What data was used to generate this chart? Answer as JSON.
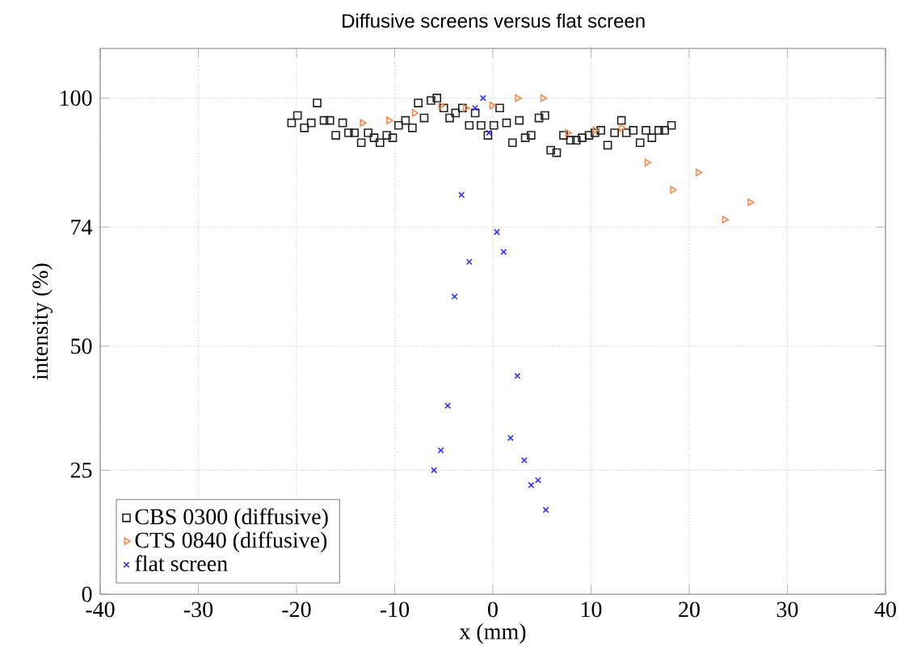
{
  "chart_data": {
    "type": "scatter",
    "title": "Diffusive screens versus flat screen",
    "xlabel": "x (mm)",
    "ylabel": "intensity (%)",
    "xlim": [
      -40,
      40
    ],
    "ylim": [
      0,
      110
    ],
    "xticks": [
      -40,
      -30,
      -20,
      -10,
      0,
      10,
      20,
      30,
      40
    ],
    "yticks": [
      0,
      25,
      50,
      74,
      100
    ],
    "grid": true,
    "legend": "bottom left",
    "series": [
      {
        "name": "CBS 0300 (diffusive)",
        "color": "#222222",
        "marker": "square",
        "x": [
          -20.5,
          -19.9,
          -19.2,
          -18.5,
          -17.9,
          -17.2,
          -16.6,
          -16.0,
          -15.3,
          -14.7,
          -14.1,
          -13.4,
          -12.7,
          -12.1,
          -11.5,
          -10.8,
          -10.2,
          -9.6,
          -8.9,
          -8.2,
          -7.6,
          -7.0,
          -6.3,
          -5.7,
          -5.0,
          -4.4,
          -3.8,
          -3.1,
          -2.4,
          -1.8,
          -1.2,
          -0.5,
          0.1,
          0.7,
          1.4,
          2.0,
          2.7,
          3.3,
          3.9,
          4.7,
          5.3,
          5.9,
          6.5,
          7.2,
          7.9,
          8.5,
          9.1,
          9.8,
          10.4,
          11.0,
          11.7,
          12.4,
          13.1,
          13.6,
          14.3,
          15.0,
          15.6,
          16.2,
          16.9,
          17.5,
          18.2
        ],
        "values": [
          95,
          96.5,
          94,
          95,
          99,
          95.5,
          95.5,
          92.5,
          95,
          93,
          93,
          91,
          93,
          92,
          91,
          92.5,
          92,
          94.5,
          95.5,
          94,
          99,
          96,
          99.5,
          100,
          98,
          96,
          97,
          98,
          94.5,
          97,
          94.5,
          92.5,
          94.5,
          98,
          95,
          91,
          95.5,
          92,
          92.5,
          96,
          96.5,
          89.5,
          89,
          92.5,
          91.5,
          91.5,
          92,
          92.5,
          93,
          93.5,
          90.5,
          93,
          95.5,
          93,
          93.5,
          91,
          93.5,
          92,
          93.5,
          93.5,
          94.5
        ]
      },
      {
        "name": "CTS 0840 (diffusive)",
        "color": "#f5874a",
        "marker": "triangle",
        "x": [
          -13.3,
          -10.6,
          -8.0,
          -5.3,
          -2.8,
          -0.1,
          2.5,
          5.1,
          7.6,
          10.4,
          13.1,
          15.7,
          18.3,
          20.9,
          23.6,
          26.2
        ],
        "values": [
          95,
          95.5,
          97,
          98.5,
          98,
          98.5,
          100,
          100,
          93,
          93.5,
          94,
          87,
          81.5,
          85,
          75.5,
          79
        ]
      },
      {
        "name": "flat screen",
        "color": "#2f2fff",
        "marker": "cross",
        "x": [
          -1.0,
          -1.8,
          -0.4,
          -3.2,
          0.4,
          1.1,
          -2.4,
          -3.9,
          2.5,
          -4.6,
          1.8,
          -5.3,
          3.2,
          -6.0,
          4.6,
          3.9,
          5.4
        ],
        "values": [
          100,
          98,
          93,
          80.5,
          73,
          69,
          67,
          60,
          44,
          38,
          31.5,
          29,
          27,
          25,
          23,
          22,
          17
        ]
      }
    ]
  }
}
